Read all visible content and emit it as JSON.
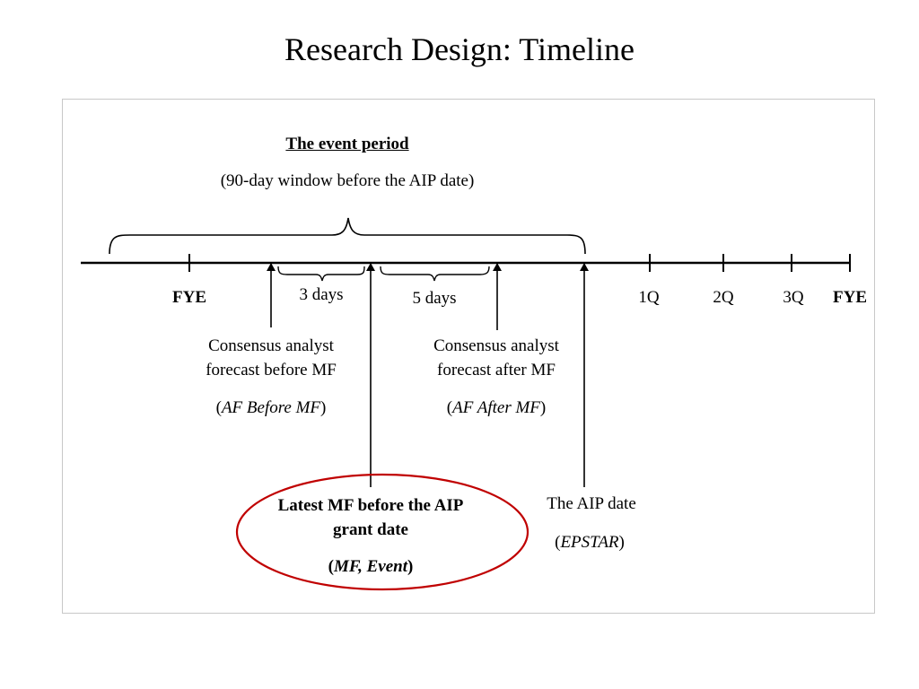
{
  "title": "Research Design: Timeline",
  "event_period": {
    "heading": "The event period",
    "subheading": "(90-day window before the AIP date)"
  },
  "timeline": {
    "ticks": [
      "FYE",
      "1Q",
      "2Q",
      "3Q",
      "FYE"
    ],
    "gap_3": "3 days",
    "gap_5": "5 days"
  },
  "af_before": {
    "line1": "Consensus analyst",
    "line2": "forecast before MF",
    "code_open": "(",
    "code": "AF Before MF",
    "code_close": ")"
  },
  "af_after": {
    "line1": "Consensus analyst",
    "line2": "forecast after MF",
    "code_open": "(",
    "code": "AF After MF",
    "code_close": ")"
  },
  "mf_event": {
    "line1": "Latest MF before the AIP",
    "line2": "grant date",
    "code_open": "(",
    "code": "MF, Event",
    "code_close": ")"
  },
  "aip": {
    "line1": "The AIP date",
    "code_open": "(",
    "code": "EPSTAR",
    "code_close": ")"
  },
  "colors": {
    "highlight": "#c00000",
    "line": "#000000",
    "frame_border": "#c8c8c8"
  }
}
